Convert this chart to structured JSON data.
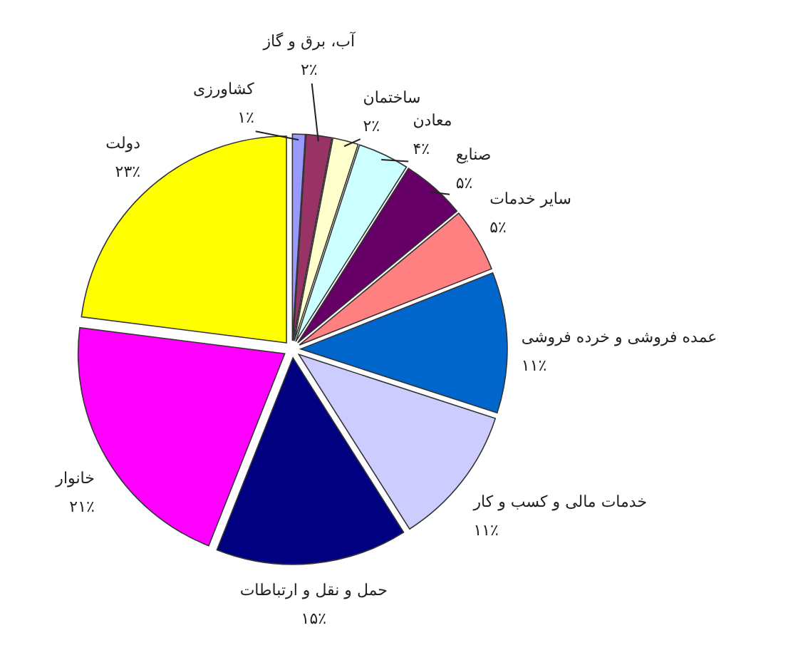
{
  "chart_data": {
    "type": "pie",
    "categories": [
      "کشاورزی",
      "آب، برق و گاز",
      "ساختمان",
      "معادن",
      "صنایع",
      "سایر خدمات",
      "عمده فروشی و خرده فروشی",
      "خدمات مالی و کسب و کار",
      "حمل و نقل و ارتباطات",
      "خانوار",
      "دولت"
    ],
    "values": [
      1,
      2,
      2,
      4,
      5,
      5,
      11,
      11,
      15,
      21,
      23
    ],
    "colors": [
      "#9999ff",
      "#993366",
      "#ffffcc",
      "#ccffff",
      "#660066",
      "#ff8080",
      "#0066cc",
      "#ccccff",
      "#000080",
      "#ff00ff",
      "#ffff00"
    ],
    "value_labels": [
      "۱٪",
      "۲٪",
      "۲٪",
      "۴٪",
      "۵٪",
      "۵٪",
      "۱۱٪",
      "۱۱٪",
      "۱۵٪",
      "۲۱٪",
      "۲۳٪"
    ]
  }
}
